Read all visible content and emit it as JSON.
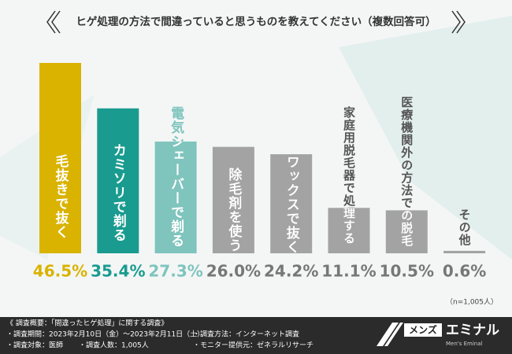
{
  "chart_data": {
    "type": "bar",
    "title": "ヒゲ処理の方法で間違っていると思うものを教えてください（複数回答可）",
    "categories": [
      "毛抜きで抜く",
      "カミソリで剃る",
      "電気シェーバーで剃る",
      "除毛剤を使う",
      "ワックスで抜く",
      "家庭用脱毛器で処理する",
      "医療機関外の方法での脱毛",
      "その他"
    ],
    "values": [
      46.5,
      35.4,
      27.3,
      26.0,
      24.2,
      11.1,
      10.5,
      0.6
    ],
    "value_labels": [
      "46.5%",
      "35.4%",
      "27.3%",
      "26.0%",
      "24.2%",
      "11.1%",
      "10.5%",
      "0.6%"
    ],
    "colors": [
      "#d9b300",
      "#1a9b8f",
      "#7fc4bd",
      "#a3a3a3",
      "#a3a3a3",
      "#a3a3a3",
      "#a3a3a3",
      "#a3a3a3"
    ],
    "note": "（n=1,005人）"
  },
  "survey": {
    "heading": "《 調査概要：「間違ったヒゲ処理」に関する調査》",
    "period": "・調査期間：2023年2月10日（金）～2023年2月11日（土）",
    "target": "・調査対象：医師",
    "count": "・調査人数：1,005人",
    "method": "・調査方法：インターネット調査",
    "provider": "・モニター提供元：ゼネラルリサーチ"
  },
  "logo": {
    "mens": "メンズ",
    "eminal": "エミナル",
    "sub": "Men's Eminal"
  }
}
